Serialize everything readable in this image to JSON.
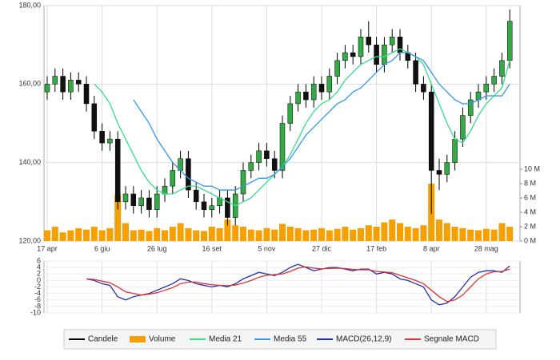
{
  "chart_data": [
    {
      "type": "candlestick",
      "categories": [
        "17 apr",
        null,
        null,
        null,
        null,
        null,
        null,
        "6 giu",
        null,
        null,
        null,
        null,
        null,
        null,
        "26 lug",
        null,
        null,
        null,
        null,
        null,
        null,
        "16 set",
        null,
        null,
        null,
        null,
        null,
        null,
        "5 nov",
        null,
        null,
        null,
        null,
        null,
        null,
        "27 dic",
        null,
        null,
        null,
        null,
        null,
        null,
        "17 feb",
        null,
        null,
        null,
        null,
        null,
        null,
        "8 apr",
        null,
        null,
        null,
        null,
        null,
        null,
        "28 mag",
        null,
        null,
        null
      ],
      "candles": {
        "name": "Candele",
        "color": "#000000",
        "up_color": "#33aa44",
        "down_color": "#111111",
        "open": [
          158,
          160,
          162,
          158,
          161,
          160,
          155,
          148,
          145,
          146,
          130,
          132,
          129,
          131,
          128,
          132,
          134,
          138,
          141,
          133,
          130,
          128,
          129,
          131,
          126,
          132,
          138,
          140,
          143,
          141,
          138,
          150,
          155,
          158,
          156,
          160,
          158,
          162,
          166,
          168,
          167,
          172,
          170,
          165,
          170,
          172,
          168,
          166,
          160,
          158,
          138,
          137,
          140,
          146,
          152,
          156,
          158,
          160,
          162,
          166
        ],
        "high": [
          162,
          164,
          164,
          163,
          163,
          162,
          157,
          150,
          148,
          148,
          134,
          134,
          133,
          133,
          134,
          136,
          140,
          143,
          143,
          135,
          132,
          131,
          133,
          133,
          134,
          140,
          142,
          145,
          145,
          143,
          152,
          157,
          160,
          160,
          162,
          162,
          164,
          168,
          170,
          170,
          174,
          176,
          172,
          172,
          174,
          174,
          170,
          168,
          162,
          160,
          141,
          142,
          148,
          154,
          158,
          160,
          162,
          164,
          168,
          179
        ],
        "low": [
          156,
          158,
          156,
          156,
          158,
          153,
          146,
          143,
          143,
          128,
          128,
          127,
          127,
          126,
          126,
          130,
          132,
          136,
          131,
          128,
          126,
          126,
          127,
          124,
          124,
          130,
          136,
          138,
          139,
          136,
          136,
          148,
          153,
          154,
          154,
          156,
          156,
          160,
          164,
          165,
          165,
          168,
          163,
          163,
          168,
          166,
          164,
          158,
          156,
          127,
          133,
          135,
          138,
          144,
          150,
          154,
          156,
          158,
          160,
          164
        ],
        "close": [
          160,
          162,
          158,
          161,
          160,
          155,
          148,
          145,
          146,
          130,
          132,
          129,
          131,
          128,
          132,
          134,
          138,
          141,
          133,
          130,
          128,
          129,
          131,
          126,
          132,
          138,
          140,
          143,
          141,
          138,
          150,
          155,
          158,
          156,
          160,
          158,
          162,
          166,
          168,
          167,
          172,
          170,
          165,
          170,
          172,
          168,
          166,
          160,
          158,
          138,
          137,
          140,
          146,
          152,
          156,
          158,
          160,
          162,
          166,
          176
        ]
      },
      "series": [
        {
          "name": "Volume",
          "type": "bar",
          "axis": "y2",
          "color": "#f5a000",
          "values": [
            1.5,
            2,
            1.2,
            1.5,
            1.8,
            1.6,
            2,
            1.5,
            1.8,
            6.5,
            2.5,
            1.5,
            1.6,
            1.4,
            1.8,
            1.5,
            2,
            2.5,
            1.8,
            1.5,
            1.4,
            2,
            1.8,
            3,
            2.2,
            2,
            1.6,
            1.5,
            1.8,
            1.6,
            2.4,
            2,
            1.8,
            1.5,
            1.6,
            1.8,
            1.5,
            1.7,
            2,
            1.6,
            1.8,
            2.2,
            2,
            2.6,
            3,
            2.5,
            2,
            1.8,
            2.2,
            8,
            3,
            2.5,
            2,
            1.8,
            1.6,
            1.5,
            1.7,
            1.6,
            2.5,
            2
          ]
        },
        {
          "name": "Media 21",
          "type": "line",
          "color": "#33dd88",
          "values": [
            null,
            null,
            null,
            null,
            null,
            null,
            160,
            158,
            155,
            150,
            146,
            142,
            138,
            135,
            133,
            132,
            132,
            133,
            134,
            134,
            133,
            132,
            131,
            130,
            129,
            130,
            131,
            133,
            135,
            137,
            139,
            142,
            146,
            150,
            153,
            155,
            156,
            158,
            161,
            163,
            165,
            166,
            167,
            167,
            168,
            169,
            168,
            167,
            165,
            160,
            155,
            150,
            146,
            145,
            148,
            152,
            155,
            157,
            159,
            166
          ]
        },
        {
          "name": "Media 55",
          "type": "line",
          "color": "#3399ee",
          "values": [
            null,
            null,
            null,
            null,
            null,
            null,
            null,
            null,
            null,
            null,
            null,
            156,
            153,
            150,
            146,
            143,
            140,
            138,
            136,
            135,
            134,
            134,
            133,
            133,
            133,
            134,
            135,
            136,
            136,
            137,
            139,
            141,
            144,
            147,
            149,
            151,
            153,
            155,
            156,
            158,
            159,
            161,
            163,
            165,
            166,
            168,
            168,
            167,
            166,
            163,
            160,
            158,
            156,
            155,
            155,
            156,
            157,
            157,
            157,
            160
          ]
        }
      ],
      "ylim": [
        120,
        180
      ],
      "yticks": [
        {
          "value": 120,
          "label": "120,00"
        },
        {
          "value": 140,
          "label": "140,00"
        },
        {
          "value": 160,
          "label": "160,00"
        },
        {
          "value": 180,
          "label": "180,00"
        }
      ],
      "y2lim": [
        0,
        32.8
      ],
      "y2ticks": [
        {
          "value": 0,
          "label": "0 M"
        },
        {
          "value": 2,
          "label": "2 M"
        },
        {
          "value": 4,
          "label": "4 M"
        },
        {
          "value": 6,
          "label": "6 M"
        },
        {
          "value": 8,
          "label": "8 M"
        },
        {
          "value": 10,
          "label": "10 M"
        }
      ],
      "grid": true
    },
    {
      "type": "line",
      "series": [
        {
          "name": "MACD(26,12,9)",
          "color": "#2233aa",
          "values": [
            null,
            null,
            null,
            null,
            null,
            0.5,
            0,
            -1,
            -1.5,
            -5,
            -6,
            -5,
            -4.5,
            -4,
            -3,
            -2,
            -1,
            0.5,
            0,
            -1,
            -1.5,
            -2,
            -1.5,
            -2,
            -1,
            0.5,
            1.5,
            2.5,
            2,
            1.5,
            2.5,
            4,
            5,
            4,
            3,
            3.5,
            4,
            4,
            3.5,
            3,
            3.5,
            3.5,
            2,
            2.5,
            2,
            0.5,
            0,
            -1,
            -2,
            -6,
            -7.5,
            -7,
            -5,
            -2,
            1,
            2.5,
            3,
            3,
            2.5,
            4.5
          ]
        },
        {
          "name": "Segnale MACD",
          "color": "#dd3333",
          "values": [
            null,
            null,
            null,
            null,
            null,
            0.5,
            0.3,
            -0.2,
            -0.7,
            -2,
            -3.5,
            -4,
            -4.5,
            -4.2,
            -3.8,
            -3,
            -2.2,
            -1,
            -0.5,
            -0.5,
            -1,
            -1.3,
            -1.5,
            -1.6,
            -1.4,
            -0.8,
            0,
            1,
            1.6,
            1.8,
            2,
            2.8,
            3.8,
            4.2,
            3.8,
            3.6,
            3.7,
            3.8,
            3.7,
            3.4,
            3.3,
            3.3,
            2.8,
            2.6,
            2.4,
            1.6,
            0.8,
            0,
            -1,
            -3,
            -5,
            -6.5,
            -6,
            -4.5,
            -2,
            0.5,
            2,
            2.7,
            2.8,
            3.5
          ]
        }
      ],
      "ylim": [
        -10,
        6
      ],
      "yticks": [
        -10,
        -8,
        -6,
        -4,
        -2,
        0,
        2,
        4,
        6
      ],
      "grid": true
    }
  ]
}
